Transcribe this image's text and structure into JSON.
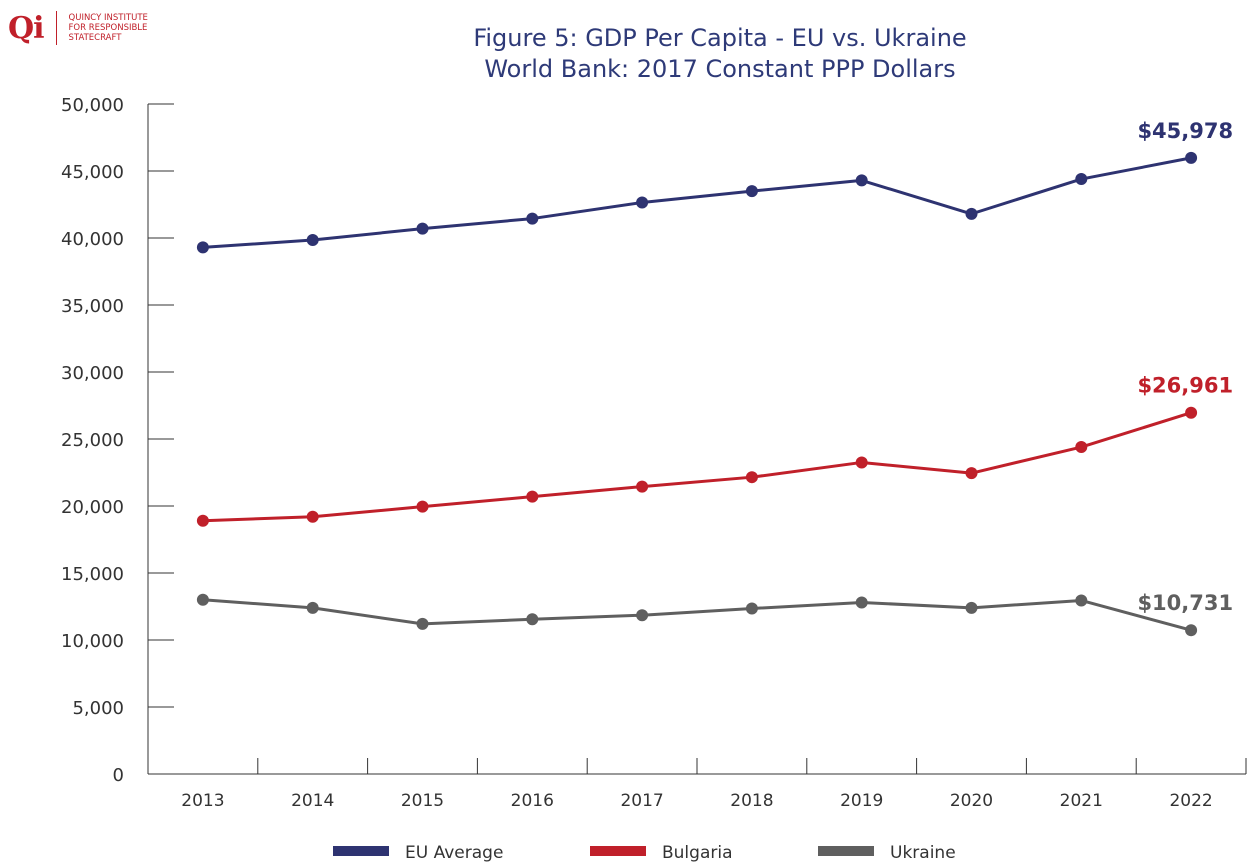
{
  "logo": {
    "mark": "Qi",
    "line1": "QUINCY INSTITUTE",
    "line2": "FOR RESPONSIBLE",
    "line3": "STATECRAFT"
  },
  "chart_data": {
    "type": "line",
    "title": "Figure 5: GDP Per Capita - EU vs. Ukraine",
    "subtitle": "World Bank: 2017 Constant PPP Dollars",
    "xlabel": "",
    "ylabel": "",
    "categories": [
      "2013",
      "2014",
      "2015",
      "2016",
      "2017",
      "2018",
      "2019",
      "2020",
      "2021",
      "2022"
    ],
    "ylim": [
      0,
      50000
    ],
    "yticks": [
      "0",
      "5,000",
      "10,000",
      "15,000",
      "20,000",
      "25,000",
      "30,000",
      "35,000",
      "40,000",
      "45,000",
      "50,000"
    ],
    "grid": false,
    "legend_position": "bottom",
    "series": [
      {
        "name": "EU Average",
        "color": "#2e3371",
        "values": [
          39300,
          39850,
          40700,
          41450,
          42650,
          43500,
          44300,
          41800,
          44400,
          45978
        ],
        "end_label": "$45,978"
      },
      {
        "name": "Bulgaria",
        "color": "#c0202a",
        "values": [
          18900,
          19200,
          19950,
          20700,
          21450,
          22150,
          23250,
          22450,
          24400,
          26961
        ],
        "end_label": "$26,961"
      },
      {
        "name": "Ukraine",
        "color": "#5f5f5f",
        "values": [
          13000,
          12400,
          11200,
          11550,
          11850,
          12350,
          12800,
          12400,
          12950,
          10731
        ],
        "end_label": "$10,731"
      }
    ]
  }
}
